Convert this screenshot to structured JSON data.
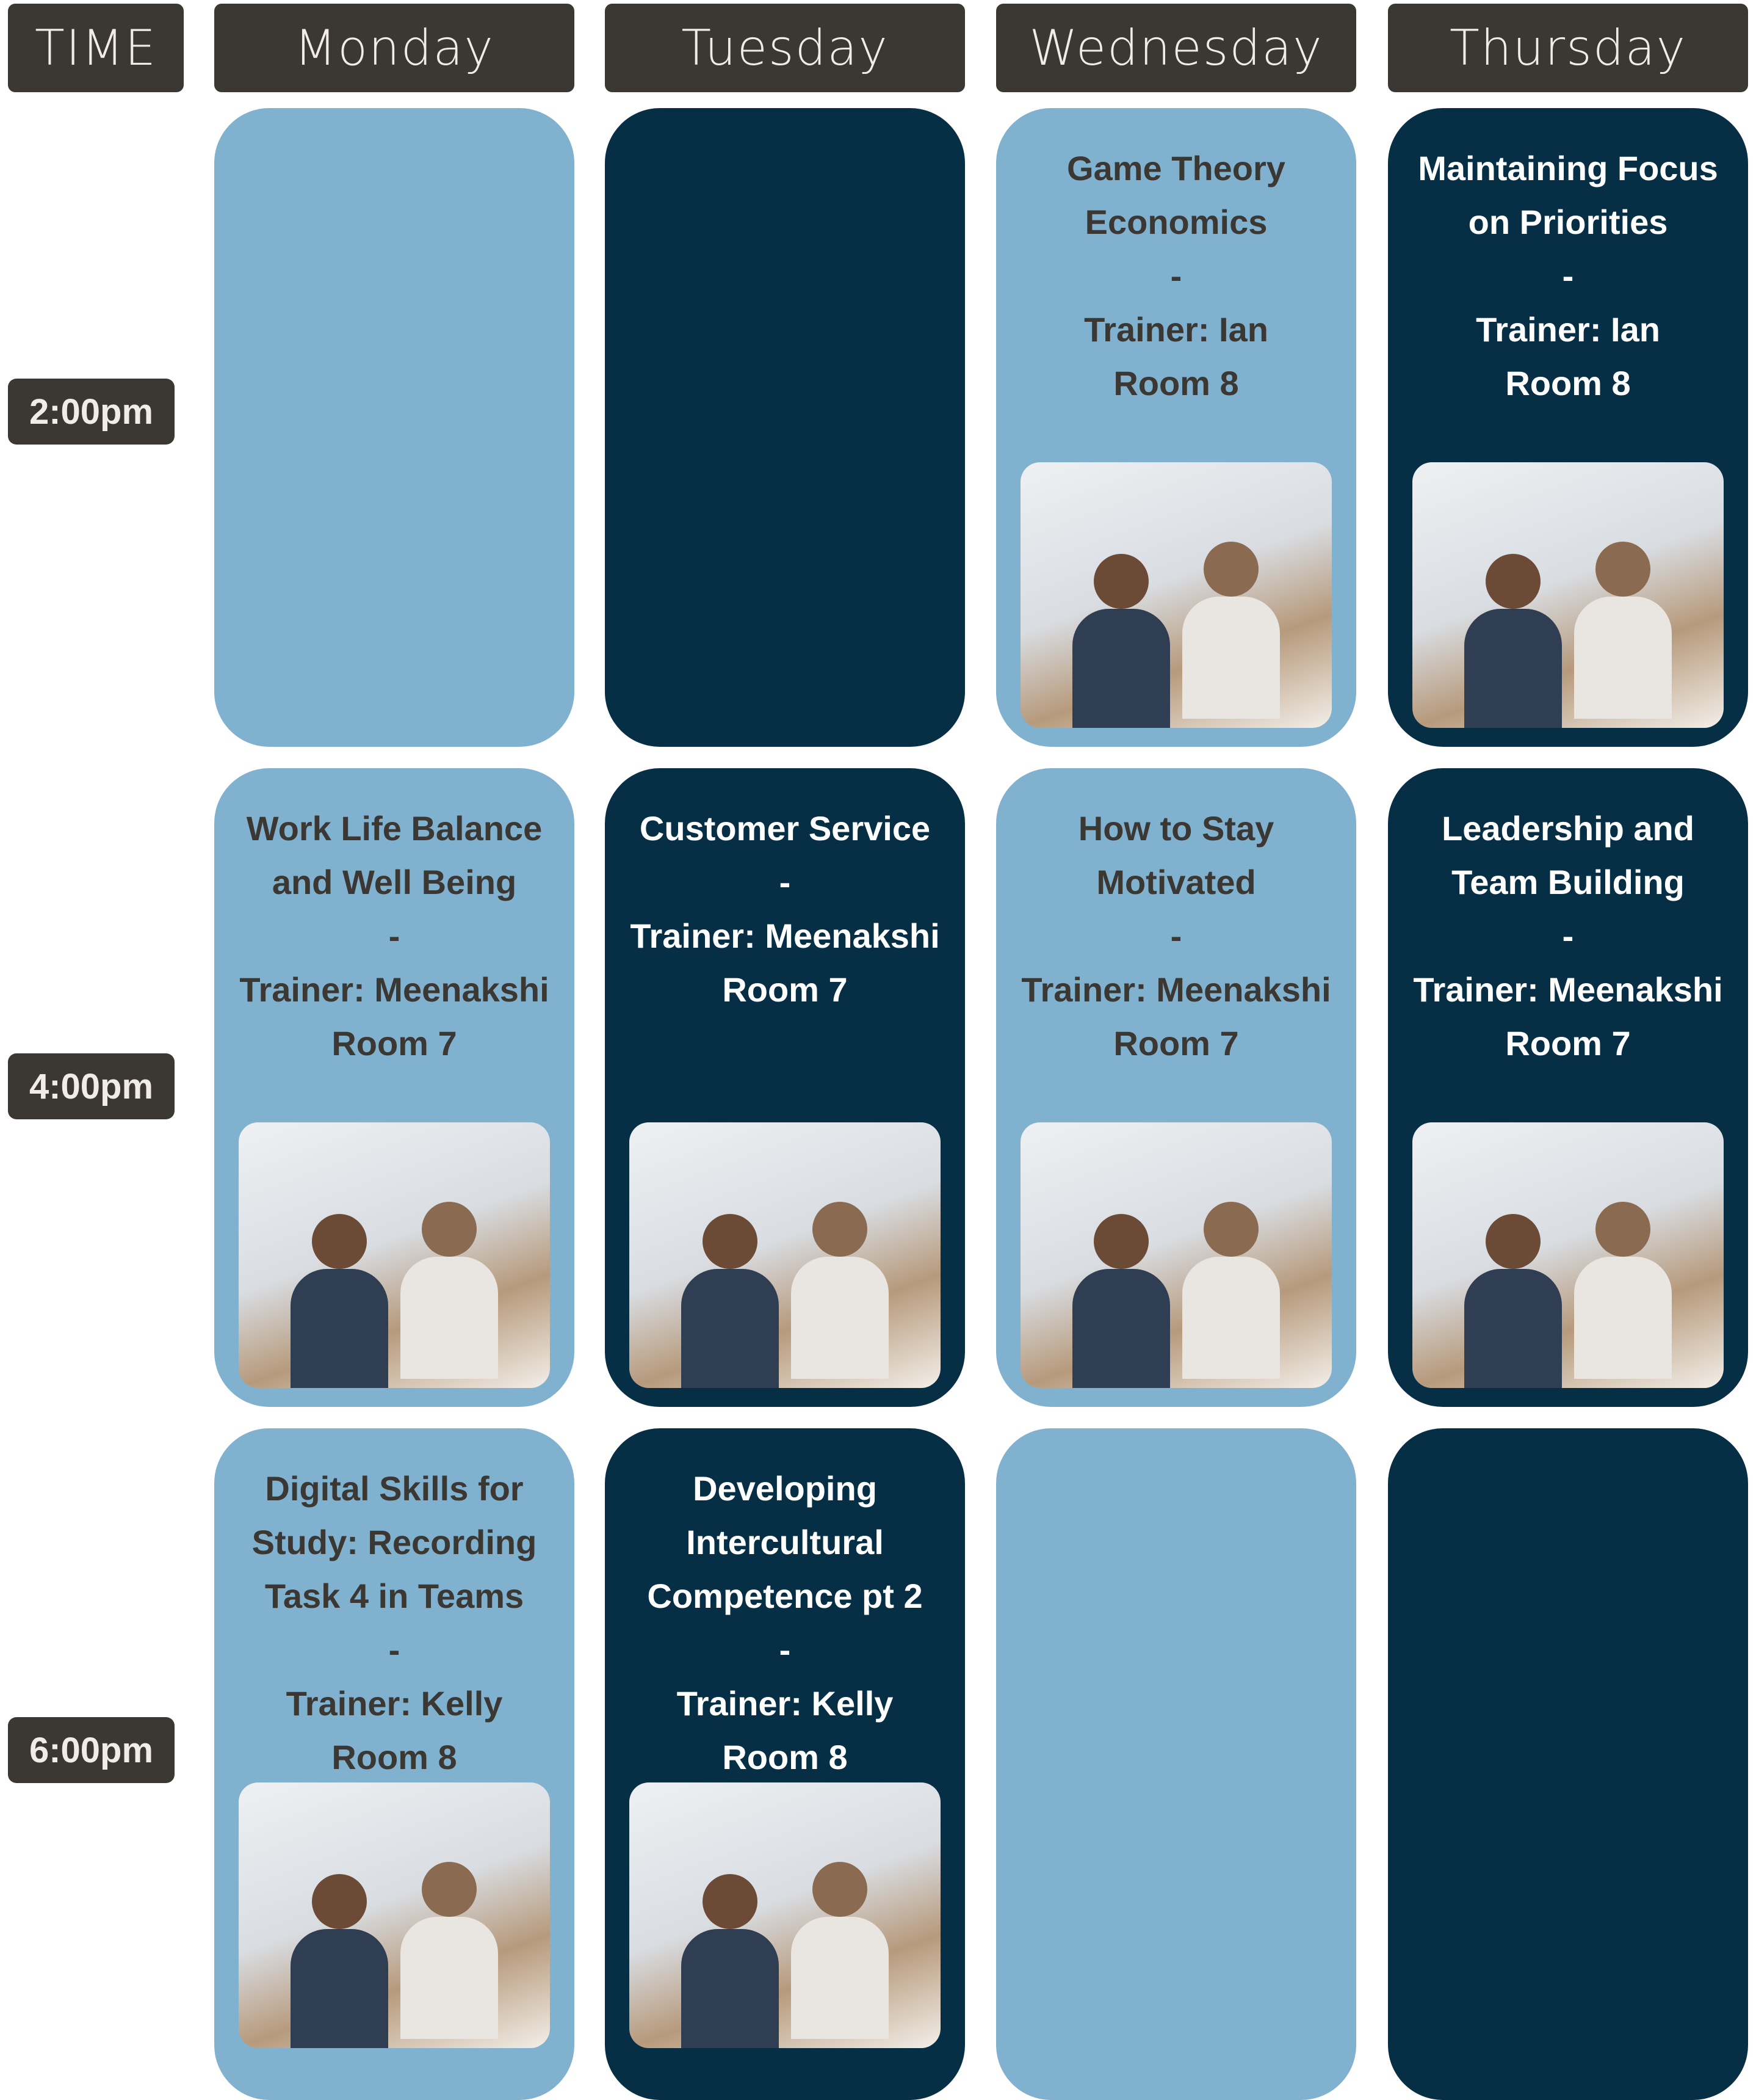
{
  "header": {
    "time_label": "TIME",
    "days": [
      "Monday",
      "Tuesday",
      "Wednesday",
      "Thursday"
    ]
  },
  "times": [
    "2:00pm",
    "4:00pm",
    "6:00pm"
  ],
  "rows": [
    [
      null,
      null,
      {
        "title": "Game Theory Economics",
        "separator": "-",
        "trainer": "Trainer: Ian",
        "room": "Room 8"
      },
      {
        "title": "Maintaining Focus on Priorities",
        "separator": "-",
        "trainer": "Trainer: Ian",
        "room": "Room 8"
      }
    ],
    [
      {
        "title": "Work Life Balance and Well Being",
        "separator": "-",
        "trainer": "Trainer: Meenakshi",
        "room": "Room 7"
      },
      {
        "title": "Customer Service",
        "separator": "-",
        "trainer": "Trainer: Meenakshi",
        "room": "Room 7"
      },
      {
        "title": "How to Stay Motivated",
        "separator": "-",
        "trainer": "Trainer: Meenakshi",
        "room": "Room 7"
      },
      {
        "title": "Leadership and Team Building",
        "separator": "-",
        "trainer": "Trainer: Meenakshi",
        "room": "Room 7"
      }
    ],
    [
      {
        "title": "Digital Skills for Study: Recording Task 4 in Teams",
        "separator": "-",
        "trainer": "Trainer: Kelly",
        "room": "Room 8"
      },
      {
        "title": "Developing Intercultural Competence pt 2",
        "separator": "-",
        "trainer": "Trainer: Kelly",
        "room": "Room 8"
      },
      null,
      null
    ]
  ]
}
